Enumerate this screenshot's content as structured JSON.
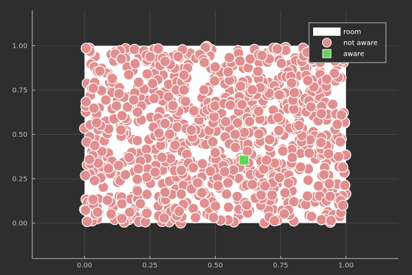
{
  "chart_data": {
    "type": "scatter",
    "xlim": [
      -0.2,
      1.2
    ],
    "ylim": [
      -0.2,
      1.2
    ],
    "x_ticks": [
      "0.00",
      "0.25",
      "0.50",
      "0.75",
      "1.00"
    ],
    "y_ticks": [
      "0.00",
      "0.25",
      "0.50",
      "0.75",
      "1.00"
    ],
    "x_tick_values": [
      0,
      0.25,
      0.5,
      0.75,
      1.0
    ],
    "y_tick_values": [
      0,
      0.25,
      0.5,
      0.75,
      1.0
    ],
    "grid": true,
    "legend_position": "top-right",
    "room": {
      "x": [
        0,
        1
      ],
      "y": [
        0,
        1
      ],
      "color": "#ffffff"
    },
    "legend": [
      {
        "label": "room",
        "marker": "rect-wide",
        "color": "#ffffff"
      },
      {
        "label": "not aware",
        "marker": "circle",
        "color": "#e08e8e"
      },
      {
        "label": "aware",
        "marker": "square",
        "color": "#66d25a"
      }
    ],
    "series": [
      {
        "name": "not aware",
        "marker": "circle",
        "color": "#e08e8e",
        "count": 1000,
        "distribution": "uniform",
        "x_range": [
          0,
          1
        ],
        "y_range": [
          0,
          1
        ]
      },
      {
        "name": "aware",
        "marker": "square",
        "color": "#66d25a",
        "points": [
          [
            0.61,
            0.355
          ]
        ]
      }
    ]
  }
}
